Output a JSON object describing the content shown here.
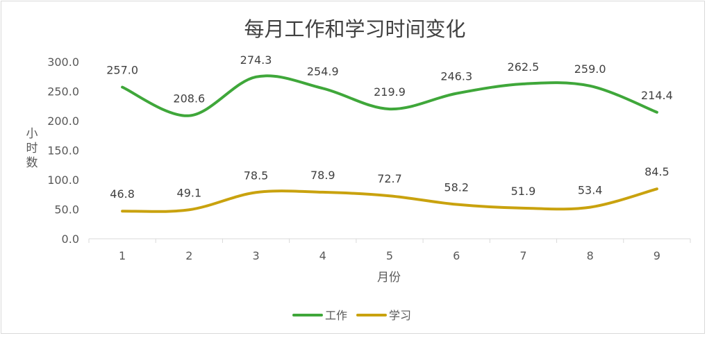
{
  "chart_data": {
    "type": "line",
    "title": "每月工作和学习时间变化",
    "xlabel": "月份",
    "ylabel": "小时数",
    "categories": [
      "1",
      "2",
      "3",
      "4",
      "5",
      "6",
      "7",
      "8",
      "9"
    ],
    "ylim": [
      0,
      300
    ],
    "yticks": [
      "0.0",
      "50.0",
      "100.0",
      "150.0",
      "200.0",
      "250.0",
      "300.0"
    ],
    "grid": false,
    "legend": "bottom",
    "smooth": true,
    "series": [
      {
        "name": "工作",
        "color": "#3fa73a",
        "values": [
          257.0,
          208.6,
          274.3,
          254.9,
          219.9,
          246.3,
          262.5,
          259.0,
          214.4
        ],
        "labels": [
          "257.0",
          "208.6",
          "274.3",
          "254.9",
          "219.9",
          "246.3",
          "262.5",
          "259.0",
          "214.4"
        ]
      },
      {
        "name": "学习",
        "color": "#c9a20e",
        "values": [
          46.8,
          49.1,
          78.5,
          78.9,
          72.7,
          58.2,
          51.9,
          53.4,
          84.5
        ],
        "labels": [
          "46.8",
          "49.1",
          "78.5",
          "78.9",
          "72.7",
          "58.2",
          "51.9",
          "53.4",
          "84.5"
        ]
      }
    ]
  }
}
